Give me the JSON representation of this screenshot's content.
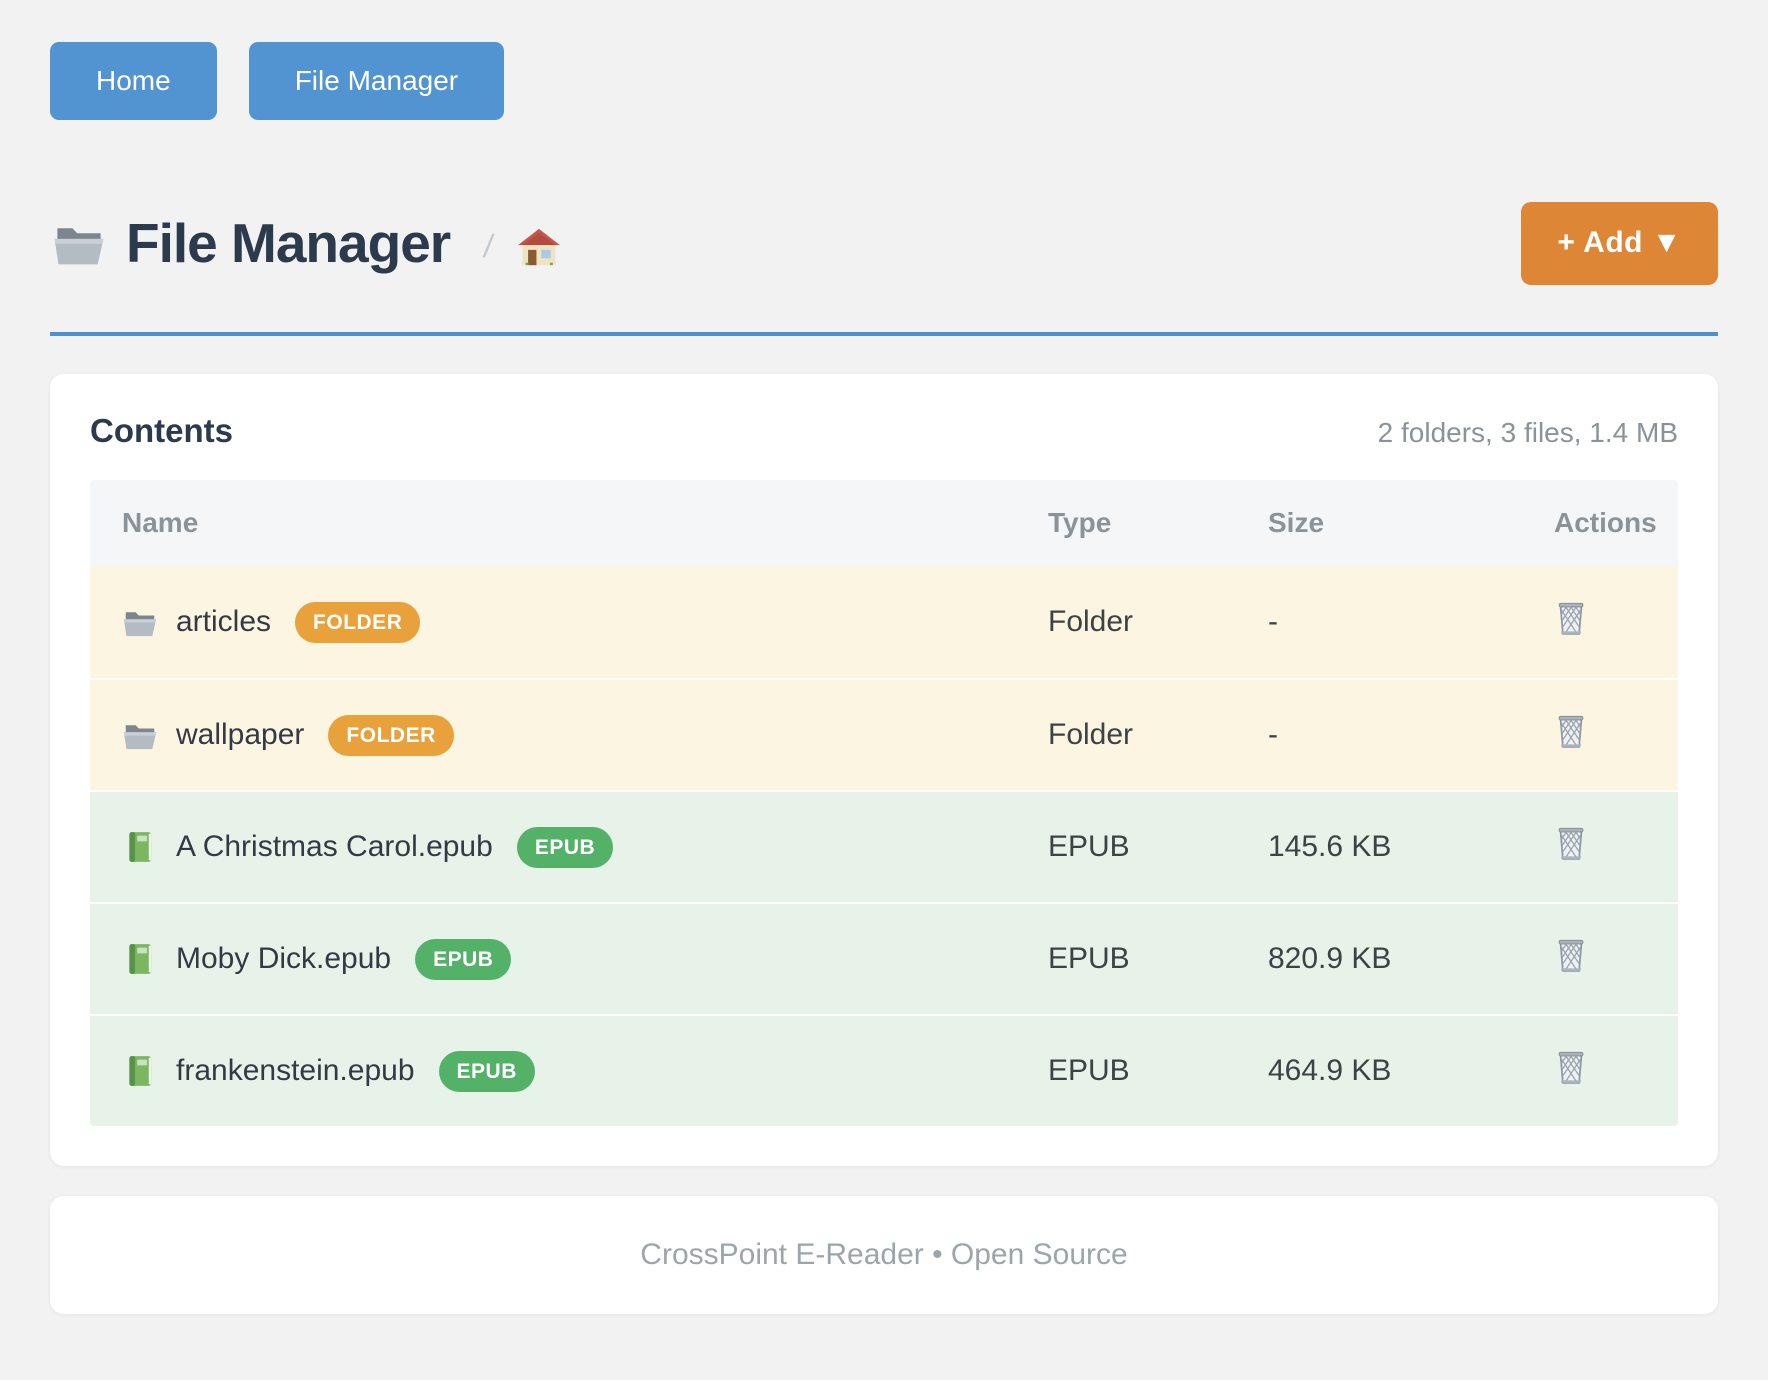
{
  "nav": {
    "home_label": "Home",
    "file_manager_label": "File Manager"
  },
  "header": {
    "title": "File Manager",
    "breadcrumb_separator": "/",
    "add_button_label": "+ Add ▼"
  },
  "contents": {
    "title": "Contents",
    "summary": "2 folders, 3 files, 1.4 MB",
    "columns": [
      "Name",
      "Type",
      "Size",
      "Actions"
    ],
    "rows": [
      {
        "name": "articles",
        "badge": "FOLDER",
        "kind": "folder",
        "type": "Folder",
        "size": "-",
        "icon": "folder-icon",
        "action": "delete"
      },
      {
        "name": "wallpaper",
        "badge": "FOLDER",
        "kind": "folder",
        "type": "Folder",
        "size": "-",
        "icon": "folder-icon",
        "action": "delete"
      },
      {
        "name": "A Christmas Carol.epub",
        "badge": "EPUB",
        "kind": "epub",
        "type": "EPUB",
        "size": "145.6 KB",
        "icon": "book-icon",
        "action": "delete"
      },
      {
        "name": "Moby Dick.epub",
        "badge": "EPUB",
        "kind": "epub",
        "type": "EPUB",
        "size": "820.9 KB",
        "icon": "book-icon",
        "action": "delete"
      },
      {
        "name": "frankenstein.epub",
        "badge": "EPUB",
        "kind": "epub",
        "type": "EPUB",
        "size": "464.9 KB",
        "icon": "book-icon",
        "action": "delete"
      }
    ]
  },
  "footer": {
    "text": "CrossPoint E-Reader • Open Source"
  },
  "colors": {
    "accent-blue": "#5294d2",
    "rule-blue": "#4a90d2",
    "accent-orange": "#dc8636",
    "badge-orange": "#e9a23b",
    "badge-green": "#54b168",
    "row-cream": "#fcf5e1",
    "row-green": "#e7f2e9",
    "title-ink": "#2c3a4d"
  }
}
